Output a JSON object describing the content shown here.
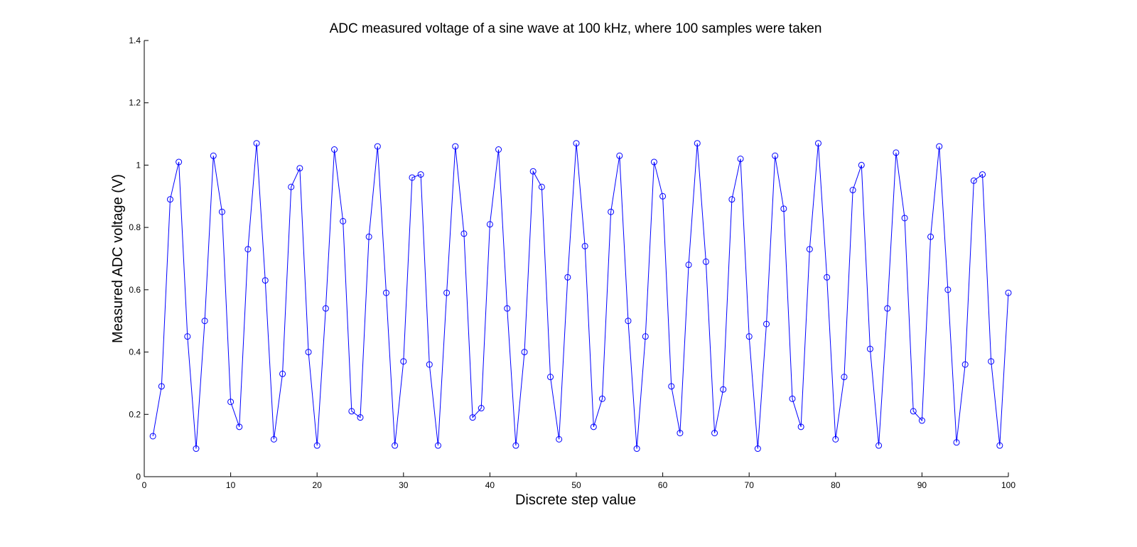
{
  "chart_data": {
    "type": "line",
    "title": "ADC measured voltage of a sine wave at 100 kHz, where 100 samples were taken",
    "xlabel": "Discrete step value",
    "ylabel": "Measured ADC voltage (V)",
    "xlim": [
      0,
      100
    ],
    "ylim": [
      0,
      1.4
    ],
    "xticks": [
      0,
      10,
      20,
      30,
      40,
      50,
      60,
      70,
      80,
      90,
      100
    ],
    "yticks": [
      0,
      0.2,
      0.4,
      0.6,
      0.8,
      1,
      1.2,
      1.4
    ],
    "grid": false,
    "color": "#0000ff",
    "marker": "circle",
    "series": [
      {
        "x": [
          1,
          2,
          3,
          4,
          5,
          6,
          7,
          8,
          9,
          10,
          11,
          12,
          13,
          14,
          15,
          16,
          17,
          18,
          19,
          20,
          21,
          22,
          23,
          24,
          25,
          26,
          27,
          28,
          29,
          30,
          31,
          32,
          33,
          34,
          35,
          36,
          37,
          38,
          39,
          40,
          41,
          42,
          43,
          44,
          45,
          46,
          47,
          48,
          49,
          50,
          51,
          52,
          53,
          54,
          55,
          56,
          57,
          58,
          59,
          60,
          61,
          62,
          63,
          64,
          65,
          66,
          67,
          68,
          69,
          70,
          71,
          72,
          73,
          74,
          75,
          76,
          77,
          78,
          79,
          80,
          81,
          82,
          83,
          84,
          85,
          86,
          87,
          88,
          89,
          90,
          91,
          92,
          93,
          94,
          95,
          96,
          97,
          98,
          99,
          100
        ],
        "y": [
          0.13,
          0.29,
          0.89,
          1.01,
          0.45,
          0.09,
          0.5,
          1.03,
          0.85,
          0.24,
          0.16,
          0.73,
          1.07,
          0.63,
          0.12,
          0.33,
          0.93,
          0.99,
          0.4,
          0.1,
          0.54,
          1.05,
          0.82,
          0.21,
          0.19,
          0.77,
          1.06,
          0.59,
          0.1,
          0.37,
          0.96,
          0.97,
          0.36,
          0.1,
          0.59,
          1.06,
          0.78,
          0.19,
          0.22,
          0.81,
          1.05,
          0.54,
          0.1,
          0.4,
          0.98,
          0.93,
          0.32,
          0.12,
          0.64,
          1.07,
          0.74,
          0.16,
          0.25,
          0.85,
          1.03,
          0.5,
          0.09,
          0.45,
          1.01,
          0.9,
          0.29,
          0.14,
          0.68,
          1.07,
          0.69,
          0.14,
          0.28,
          0.89,
          1.02,
          0.45,
          0.09,
          0.49,
          1.03,
          0.86,
          0.25,
          0.16,
          0.73,
          1.07,
          0.64,
          0.12,
          0.32,
          0.92,
          1.0,
          0.41,
          0.1,
          0.54,
          1.04,
          0.83,
          0.21,
          0.18,
          0.77,
          1.06,
          0.6,
          0.11,
          0.36,
          0.95,
          0.97,
          0.37,
          0.1,
          0.59
        ]
      }
    ]
  }
}
